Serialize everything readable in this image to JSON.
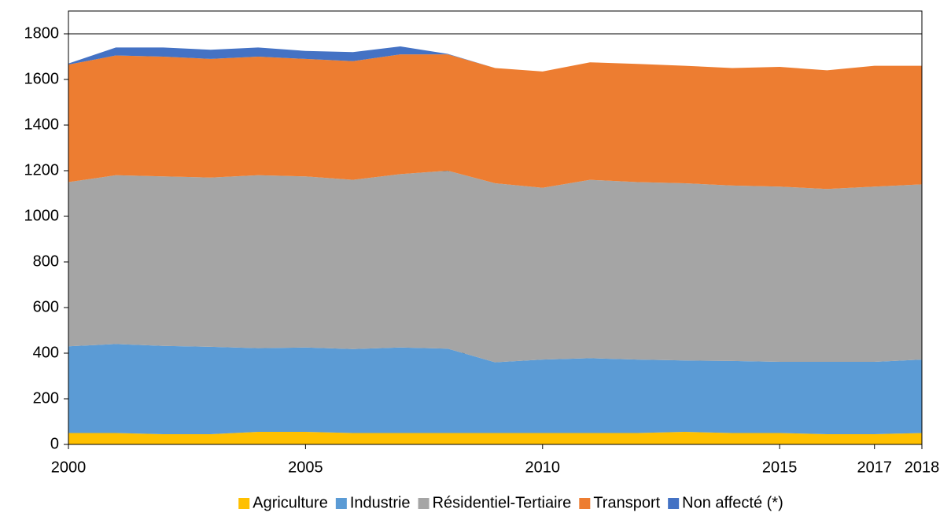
{
  "chart_data": {
    "type": "stacked_area",
    "x": [
      2000,
      2001,
      2002,
      2003,
      2004,
      2005,
      2006,
      2007,
      2008,
      2009,
      2010,
      2011,
      2012,
      2013,
      2014,
      2015,
      2016,
      2017,
      2018
    ],
    "series": [
      {
        "name": "Agriculture",
        "color": "#ffc000",
        "values": [
          50,
          50,
          45,
          45,
          55,
          55,
          50,
          50,
          50,
          50,
          50,
          50,
          50,
          55,
          50,
          50,
          45,
          45,
          50
        ]
      },
      {
        "name": "Industrie",
        "color": "#5b9bd5",
        "values": [
          380,
          390,
          387,
          383,
          367,
          370,
          368,
          375,
          370,
          310,
          322,
          328,
          322,
          313,
          316,
          312,
          317,
          317,
          322
        ]
      },
      {
        "name": "Résidentiel-Tertiaire",
        "color": "#a5a5a5",
        "values": [
          720,
          740,
          743,
          742,
          758,
          750,
          742,
          760,
          780,
          785,
          753,
          782,
          778,
          777,
          769,
          768,
          758,
          768,
          768
        ]
      },
      {
        "name": "Transport",
        "color": "#ed7d31",
        "values": [
          515,
          525,
          525,
          520,
          520,
          515,
          520,
          525,
          510,
          505,
          510,
          515,
          518,
          515,
          515,
          525,
          520,
          530,
          520
        ]
      },
      {
        "name": "Non affecté (*)",
        "color": "#4472c4",
        "values": [
          5,
          35,
          40,
          40,
          40,
          35,
          40,
          35,
          2,
          0,
          0,
          0,
          0,
          0,
          0,
          0,
          0,
          0,
          0
        ]
      }
    ],
    "xlim": [
      2000,
      2018
    ],
    "xticks": [
      2000,
      2005,
      2010,
      2015,
      2017,
      2018
    ],
    "ylim": [
      0,
      1900
    ],
    "yticks": [
      0,
      200,
      400,
      600,
      800,
      1000,
      1200,
      1400,
      1600,
      1800
    ],
    "grid": true,
    "legend": "bottom"
  }
}
